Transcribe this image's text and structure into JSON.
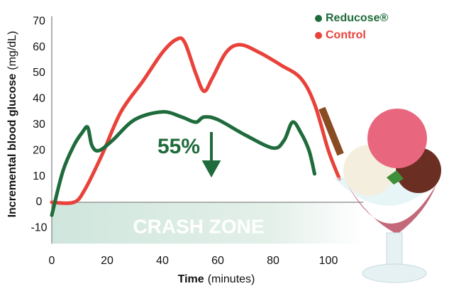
{
  "chart_data": {
    "type": "line",
    "ylabel": "Incremental blood glucose",
    "ylabel_unit": "(mg/dL)",
    "xlabel": "Time",
    "xlabel_unit": "(minutes)",
    "xlim": [
      0,
      112
    ],
    "ylim": [
      -16,
      72
    ],
    "xticks": [
      0,
      20,
      40,
      60,
      80,
      100
    ],
    "yticks": [
      -10,
      0,
      10,
      20,
      30,
      40,
      50,
      60,
      70
    ],
    "band_label": "CRASH ZONE",
    "annotation": "55%",
    "series": [
      {
        "name": "Reducose®",
        "color": "#1f6b3b",
        "x": [
          0,
          4,
          8,
          11,
          13,
          14.5,
          17,
          22,
          30,
          40,
          47,
          52,
          55,
          60,
          70,
          80,
          84,
          87,
          90,
          93,
          95
        ],
        "values": [
          -5,
          12,
          22,
          27,
          29,
          22,
          20,
          24,
          32,
          35,
          33,
          31,
          33,
          32,
          26,
          21,
          24,
          31,
          27,
          20,
          11
        ]
      },
      {
        "name": "Control",
        "color": "#e8423a",
        "x": [
          0,
          8,
          12,
          18,
          25,
          33,
          40,
          45,
          48,
          52,
          55,
          58,
          63,
          68,
          75,
          83,
          90,
          95,
          100,
          104
        ],
        "values": [
          0,
          0,
          5,
          18,
          35,
          47,
          58,
          63,
          62,
          50,
          43,
          48,
          58,
          61,
          58,
          53,
          48,
          38,
          20,
          9
        ]
      }
    ]
  }
}
